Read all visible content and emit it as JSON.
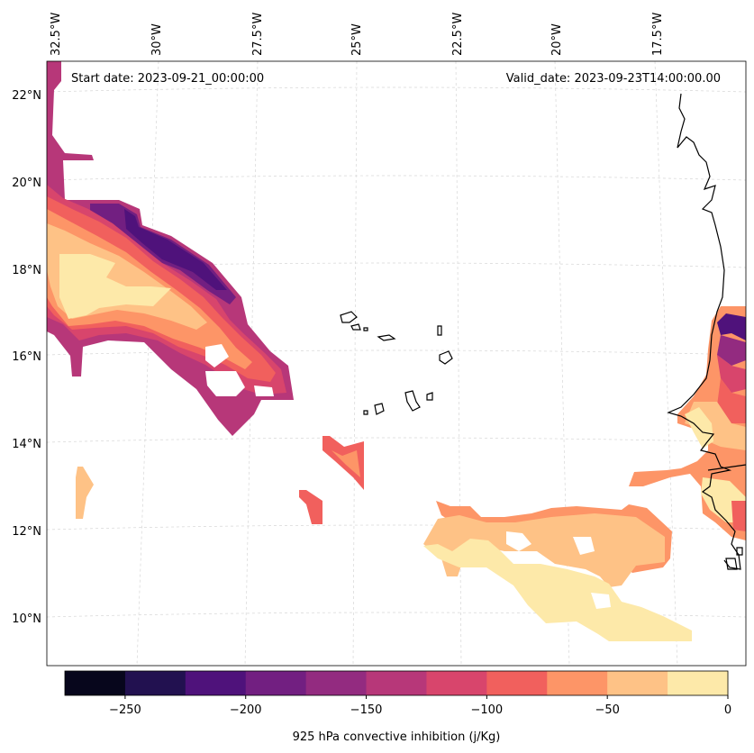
{
  "map": {
    "start_date": "Start date: 2023-09-21_00:00:00",
    "valid_date": "Valid_date: 2023-09-23T14:00:00.00",
    "lon_labels": [
      "32.5°W",
      "30°W",
      "27.5°W",
      "25°W",
      "22.5°W",
      "20°W",
      "17.5°W"
    ],
    "lat_labels": [
      "22°N",
      "20°N",
      "18°N",
      "16°N",
      "14°N",
      "12°N",
      "10°N"
    ]
  },
  "colorbar": {
    "label": "925 hPa convective inhibition (j/Kg)",
    "ticks": [
      "−250",
      "−200",
      "−150",
      "−100",
      "−50",
      "0"
    ],
    "levels": [
      -275,
      -250,
      -225,
      -200,
      -175,
      -150,
      -125,
      -100,
      -75,
      -50,
      -25,
      0
    ],
    "colors": [
      "#07061c",
      "#221150",
      "#4f127b",
      "#721f81",
      "#932b80",
      "#b73779",
      "#d8456c",
      "#f1605d",
      "#fd9567",
      "#fec286",
      "#fde9a9"
    ]
  },
  "colors": {
    "coast": "#000000",
    "grid": "#cccccc"
  }
}
